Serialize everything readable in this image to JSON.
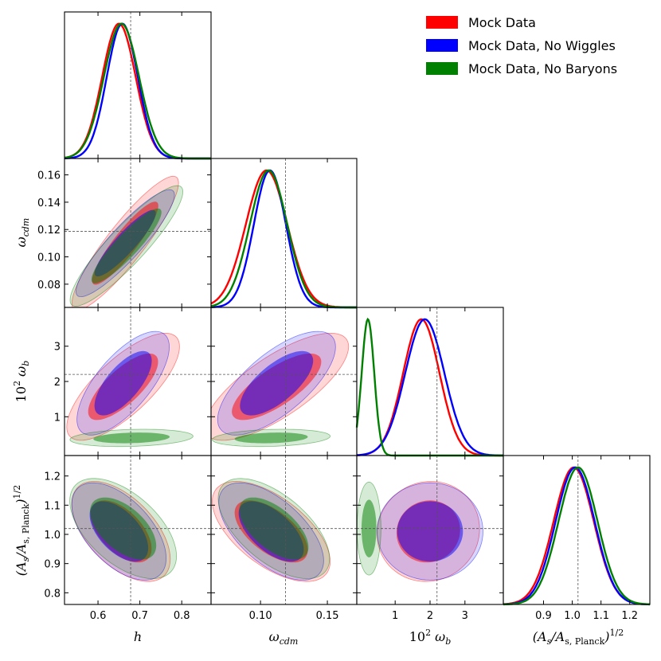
{
  "chart_data": {
    "type": "triangle",
    "title": "",
    "legend": {
      "placement": "top-right",
      "entries": [
        {
          "name": "Mock Data",
          "color": "#ff0000"
        },
        {
          "name": "Mock Data, No Wiggles",
          "color": "#0000ff"
        },
        {
          "name": "Mock Data, No Baryons",
          "color": "#008000"
        }
      ]
    },
    "parameters": [
      {
        "key": "h",
        "range": [
          0.52,
          0.87
        ],
        "ticks": [
          0.6,
          0.7,
          0.8
        ],
        "tick_labels": [
          "0.6",
          "0.7",
          "0.8"
        ],
        "fiducial": 0.678
      },
      {
        "key": "omega_cdm",
        "range": [
          0.063,
          0.172
        ],
        "ticks": [
          0.08,
          0.1,
          0.12,
          0.14,
          0.16
        ],
        "tick_labels": [
          "0.08",
          "0.10",
          "0.12",
          "0.14",
          "0.16"
        ],
        "fiducial": 0.1187
      },
      {
        "key": "omega_b",
        "range": [
          -0.1,
          4.1
        ],
        "ticks": [
          1,
          2,
          3
        ],
        "tick_labels": [
          "1",
          "2",
          "3"
        ],
        "fiducial": 2.2
      },
      {
        "key": "As",
        "range": [
          0.76,
          1.27
        ],
        "ticks": [
          0.8,
          0.9,
          1.0,
          1.1,
          1.2
        ],
        "tick_labels": [
          "0.8",
          "0.9",
          "1.0",
          "1.1",
          "1.2"
        ],
        "fiducial": 1.02
      }
    ],
    "x_tick_overrides": {
      "omega_cdm": {
        "ticks": [
          0.1,
          0.15
        ],
        "tick_labels": [
          "0.10",
          "0.15"
        ]
      },
      "As": {
        "ticks": [
          0.9,
          1.0,
          1.1,
          1.2
        ],
        "tick_labels": [
          "0.9",
          "1.0",
          "1.1",
          "1.2"
        ]
      }
    },
    "marginals": {
      "h": [
        {
          "series": "Mock Data",
          "mean": 0.65,
          "sd": 0.04
        },
        {
          "series": "Mock Data, No Wiggles",
          "mean": 0.658,
          "sd": 0.037
        },
        {
          "series": "Mock Data, No Baryons",
          "mean": 0.656,
          "sd": 0.042
        }
      ],
      "omega_cdm": [
        {
          "series": "Mock Data",
          "mean": 0.1045,
          "sd": 0.0155
        },
        {
          "series": "Mock Data, No Wiggles",
          "mean": 0.107,
          "sd": 0.012
        },
        {
          "series": "Mock Data, No Baryons",
          "mean": 0.106,
          "sd": 0.014
        }
      ],
      "omega_b": [
        {
          "series": "Mock Data",
          "mean": 1.75,
          "sd": 0.52
        },
        {
          "series": "Mock Data, No Wiggles",
          "mean": 1.85,
          "sd": 0.56
        },
        {
          "series": "Mock Data, No Baryons",
          "mean": 0.22,
          "sd": 0.18
        }
      ],
      "As": [
        {
          "series": "Mock Data",
          "mean": 1.005,
          "sd": 0.07
        },
        {
          "series": "Mock Data, No Wiggles",
          "mean": 1.01,
          "sd": 0.068
        },
        {
          "series": "Mock Data, No Baryons",
          "mean": 1.02,
          "sd": 0.068
        }
      ]
    },
    "contours_2d": [
      {
        "x": "h",
        "y": "omega_cdm",
        "ellipses": [
          {
            "series": "Mock Data",
            "cx": 0.665,
            "cy": 0.11,
            "sx": 0.052,
            "sy": 0.02,
            "r": 0.9
          },
          {
            "series": "Mock Data, No Wiggles",
            "cx": 0.665,
            "cy": 0.11,
            "sx": 0.048,
            "sy": 0.016,
            "r": 0.9
          },
          {
            "series": "Mock Data, No Baryons",
            "cx": 0.668,
            "cy": 0.108,
            "sx": 0.055,
            "sy": 0.018,
            "r": 0.9
          }
        ]
      },
      {
        "x": "h",
        "y": "omega_b",
        "ellipses": [
          {
            "series": "Mock Data",
            "cx": 0.66,
            "cy": 1.85,
            "sx": 0.055,
            "sy": 0.62,
            "r": 0.75
          },
          {
            "series": "Mock Data, No Wiggles",
            "cx": 0.66,
            "cy": 1.95,
            "sx": 0.045,
            "sy": 0.6,
            "r": 0.7
          },
          {
            "series": "Mock Data, No Baryons",
            "cx": 0.68,
            "cy": 0.4,
            "sx": 0.06,
            "sy": 0.1,
            "r": 0.2
          }
        ]
      },
      {
        "x": "omega_cdm",
        "y": "omega_b",
        "ellipses": [
          {
            "series": "Mock Data",
            "cx": 0.112,
            "cy": 1.85,
            "sx": 0.022,
            "sy": 0.62,
            "r": 0.75
          },
          {
            "series": "Mock Data, No Wiggles",
            "cx": 0.112,
            "cy": 1.95,
            "sx": 0.018,
            "sy": 0.6,
            "r": 0.7
          },
          {
            "series": "Mock Data, No Baryons",
            "cx": 0.108,
            "cy": 0.4,
            "sx": 0.018,
            "sy": 0.1,
            "r": 0.2
          }
        ]
      },
      {
        "x": "h",
        "y": "As",
        "ellipses": [
          {
            "series": "Mock Data",
            "cx": 0.655,
            "cy": 1.01,
            "sx": 0.048,
            "sy": 0.07,
            "r": -0.55
          },
          {
            "series": "Mock Data, No Wiggles",
            "cx": 0.65,
            "cy": 1.01,
            "sx": 0.046,
            "sy": 0.068,
            "r": -0.55
          },
          {
            "series": "Mock Data, No Baryons",
            "cx": 0.66,
            "cy": 1.02,
            "sx": 0.052,
            "sy": 0.07,
            "r": -0.55
          }
        ]
      },
      {
        "x": "omega_cdm",
        "y": "As",
        "ellipses": [
          {
            "series": "Mock Data",
            "cx": 0.108,
            "cy": 1.01,
            "sx": 0.018,
            "sy": 0.07,
            "r": -0.6
          },
          {
            "series": "Mock Data, No Wiggles",
            "cx": 0.108,
            "cy": 1.01,
            "sx": 0.016,
            "sy": 0.068,
            "r": -0.6
          },
          {
            "series": "Mock Data, No Baryons",
            "cx": 0.11,
            "cy": 1.02,
            "sx": 0.017,
            "sy": 0.07,
            "r": -0.6
          }
        ]
      },
      {
        "x": "omega_b",
        "y": "As",
        "ellipses": [
          {
            "series": "Mock Data",
            "cx": 1.95,
            "cy": 1.01,
            "sx": 0.6,
            "sy": 0.07,
            "r": 0.05
          },
          {
            "series": "Mock Data, No Wiggles",
            "cx": 2.0,
            "cy": 1.01,
            "sx": 0.62,
            "sy": 0.068,
            "r": 0.0
          },
          {
            "series": "Mock Data, No Baryons",
            "cx": 0.25,
            "cy": 1.02,
            "sx": 0.14,
            "sy": 0.065,
            "r": 0.0
          }
        ]
      }
    ]
  },
  "labels": {
    "x": {
      "h_base": "h",
      "cdm_base": "ω",
      "cdm_sub": "cdm",
      "b_pre": "10",
      "b_sup": "2",
      "b_base": " ω",
      "b_sub": "b",
      "As_open": "(A",
      "As_sub": "s",
      "As_mid": "/A",
      "As_sub2": "s, Planck",
      "As_close": ")",
      "As_sup": "1/2"
    },
    "y": {
      "cdm_base": "ω",
      "cdm_sub": "cdm",
      "b_pre": "10",
      "b_sup": "2",
      "b_base": " ω",
      "b_sub": "b",
      "As_open": "(A",
      "As_sub": "s",
      "As_mid": "/A",
      "As_sub2": "s, Planck",
      "As_close": ")",
      "As_sup": "1/2"
    }
  }
}
